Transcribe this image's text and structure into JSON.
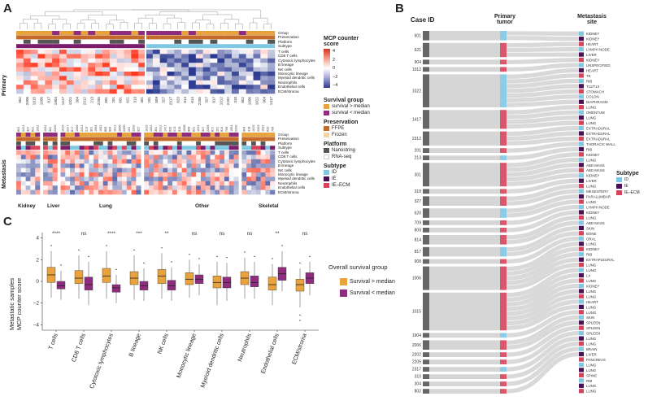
{
  "panel_a": {
    "letter": "A",
    "primary_label": "Primary",
    "metastasis_label": "Metastasis",
    "annotation_rows": [
      "Group",
      "Preservation",
      "Platform",
      "Subtype"
    ],
    "cell_rows": [
      "T cells",
      "CD8 T cells",
      "Cytotoxic lymphocytes",
      "B lineage",
      "NK cells",
      "Monocytic lineage",
      "Myeloid dendritic cells",
      "Neutrophils",
      "Endothelial cells",
      "ECM/stroma"
    ],
    "primary_ids": [
      "802",
      "2006",
      "1015",
      "1006",
      "817",
      "1904",
      "1417",
      "1022",
      "304",
      "2312",
      "213",
      "2205",
      "691",
      "201",
      "601",
      "621",
      "310",
      "301",
      "201",
      "809",
      "327",
      "2317",
      "620",
      "814",
      "614",
      "2205",
      "327",
      "817",
      "1012",
      "2202",
      "318",
      "802",
      "1006",
      "1022",
      "904",
      "1417"
    ],
    "meta_ids_kidney": [
      "601",
      "2312",
      "327",
      "621",
      "1022"
    ],
    "meta_ids_liver": [
      "1022",
      "301",
      "2202"
    ],
    "meta_ids_lung": [
      "1015",
      "2317",
      "817",
      "1006",
      "2312",
      "213",
      "301",
      "1904",
      "1022",
      "809",
      "904",
      "1012",
      "2006",
      "2205",
      "201",
      "2202",
      "327"
    ],
    "meta_ids_other": [
      "1015",
      "1022",
      "301",
      "2312",
      "1417",
      "620",
      "213",
      "318",
      "1006",
      "809",
      "621",
      "1012",
      "327",
      "2205",
      "817",
      "201",
      "814",
      "709",
      "1904",
      "2202"
    ],
    "meta_ids_skeletal": [
      "904",
      "318",
      "1015",
      "2202",
      "1022",
      "620",
      "709"
    ],
    "groups": [
      "Kidney",
      "Liver",
      "Lung",
      "Other",
      "Skeletal"
    ],
    "legend": {
      "score_title_1": "MCP counter",
      "score_title_2": "score",
      "score_ticks": [
        "4",
        "2",
        "0",
        "−2",
        "−4"
      ],
      "survival_title": "Survival group",
      "survival_items": [
        "survival > median",
        "survival < median"
      ],
      "preservation_title": "Preservation",
      "preservation_items": [
        "FFPE",
        "Frozen"
      ],
      "platform_title": "Platform",
      "platform_items": [
        "Nanostring",
        "RNA-seq"
      ],
      "subtype_title": "Subtype",
      "subtype_items": [
        "ID",
        "IE",
        "IE–ECM"
      ]
    },
    "colors": {
      "surv_high": "#e8a33c",
      "surv_low": "#8e2c7e",
      "ffpe": "#c46a2b",
      "frozen": "#f1d4a8",
      "nanostring": "#555555",
      "rnaseq": "#ffffff",
      "id": "#7ec8e3",
      "ie": "#4b0f56",
      "ie_ecm": "#d6445b",
      "hot": "#d7301f",
      "cold": "#2b3a8f"
    }
  },
  "panel_b": {
    "letter": "B",
    "header_case": "Case",
    "header_id": "ID",
    "header_primary_1": "Primary",
    "header_primary_2": "tumor",
    "header_meta_1": "Metastasis",
    "header_meta_2": "site",
    "cases": [
      "601",
      "621",
      "904",
      "1012",
      "1022",
      "1417",
      "2312",
      "201",
      "213",
      "301",
      "318",
      "327",
      "620",
      "709",
      "809",
      "814",
      "817",
      "908",
      "1006",
      "1015",
      "1904",
      "2006",
      "2202",
      "2205",
      "2317",
      "310",
      "304",
      "802"
    ],
    "sites": [
      "KIDNEY",
      "KIDNEY",
      "HEART",
      "LYMPH NODE",
      "LIVER",
      "KIDNEY",
      "UNSPECIFIED",
      "HEART",
      "T8",
      "RIB",
      "T11/T13",
      "STOMACH",
      "COLON",
      "DIAPHRAGM",
      "LUNG",
      "OMENTUM",
      "LUNG",
      "LUNG",
      "EXTRADURAL",
      "EXTRADURAL",
      "EXTRADURAL",
      "THORACIC WALL",
      "RIB",
      "KIDNEY",
      "LUNG",
      "ABD MASS",
      "ABD MASS",
      "KIDNEY",
      "LIVER",
      "LUNG",
      "MESENTERY",
      "PARALUMBAR",
      "LUNG",
      "LYMPH NODE",
      "KIDNEY",
      "LUNG",
      "ABD MASS",
      "SKIN",
      "BONE",
      "ORAL",
      "LUNG",
      "KIDNEY",
      "RIB",
      "EXTRAPLEURAL",
      "LUNG",
      "LUNG",
      "L4",
      "LUNG",
      "KIDNEY",
      "LUNG",
      "LUNG",
      "HEART",
      "LUNG",
      "LUNG",
      "SKIN",
      "SPLEEN",
      "SPLEEN",
      "SPLEEN",
      "LUNG",
      "LUNG",
      "BRAIN",
      "LIVER",
      "PANCREAS",
      "LUNG",
      "LUNG",
      "SPINE",
      "RIB",
      "LUNG",
      "LUNG"
    ],
    "subtype_legend_title": "Subtype",
    "subtype_legend_items": [
      "ID",
      "IE",
      "IE–ECM"
    ]
  },
  "panel_c": {
    "letter": "C",
    "y_label_1": "Metastatic samples",
    "y_label_2": "MCP counter score",
    "legend_title": "Overall survival group",
    "legend_items": [
      "Survival > median",
      "Survival < median"
    ],
    "chart_data": {
      "type": "box",
      "categories": [
        "T cells",
        "CD8 T cells",
        "Cytotoxic lymphocytes",
        "B lineage",
        "NK cells",
        "Monocytic lineage",
        "Myeloid dendritic cells",
        "Neutrophils",
        "Endothelial cells",
        "ECM/stroma"
      ],
      "significance": [
        "****",
        "ns",
        "****",
        "***",
        "**",
        "ns",
        "ns",
        "ns",
        "**",
        "ns"
      ],
      "yticks": [
        "4",
        "2",
        "0",
        "−2",
        "−4"
      ],
      "ylim": [
        -4.5,
        4.5
      ],
      "series": [
        {
          "name": "Survival > median",
          "color": "#e8a33c",
          "q1": [
            -0.1,
            -0.2,
            -0.1,
            -0.3,
            -0.2,
            -0.3,
            -0.6,
            -0.3,
            -0.8,
            -0.9
          ],
          "median": [
            0.6,
            0.3,
            0.5,
            0.3,
            0.5,
            0.2,
            -0.1,
            0.3,
            -0.3,
            -0.3
          ],
          "q3": [
            1.3,
            1.0,
            1.2,
            0.9,
            1.1,
            0.8,
            0.5,
            0.9,
            0.4,
            0.2
          ],
          "lo": [
            -1.5,
            -1.6,
            -1.6,
            -1.7,
            -1.6,
            -1.5,
            -2.2,
            -1.6,
            -2.2,
            -2.4
          ],
          "hi": [
            2.8,
            2.4,
            2.8,
            2.4,
            2.6,
            2.0,
            1.8,
            2.2,
            1.6,
            1.2
          ]
        },
        {
          "name": "Survival < median",
          "color": "#8e2c7e",
          "q1": [
            -0.7,
            -0.8,
            -1.0,
            -0.8,
            -0.8,
            -0.2,
            -0.6,
            -0.5,
            0.1,
            -0.2
          ],
          "median": [
            -0.4,
            -0.3,
            -0.6,
            -0.4,
            -0.4,
            0.2,
            -0.1,
            -0.1,
            0.7,
            0.3
          ],
          "q3": [
            0.0,
            0.4,
            -0.3,
            0.0,
            0.1,
            0.6,
            0.4,
            0.5,
            1.3,
            0.8
          ],
          "lo": [
            -1.7,
            -2.2,
            -2.0,
            -1.8,
            -1.8,
            -1.3,
            -1.8,
            -1.6,
            -0.9,
            -1.3
          ],
          "hi": [
            1.0,
            1.8,
            0.6,
            1.2,
            1.3,
            1.6,
            1.7,
            1.8,
            2.8,
            1.8
          ]
        }
      ]
    }
  }
}
